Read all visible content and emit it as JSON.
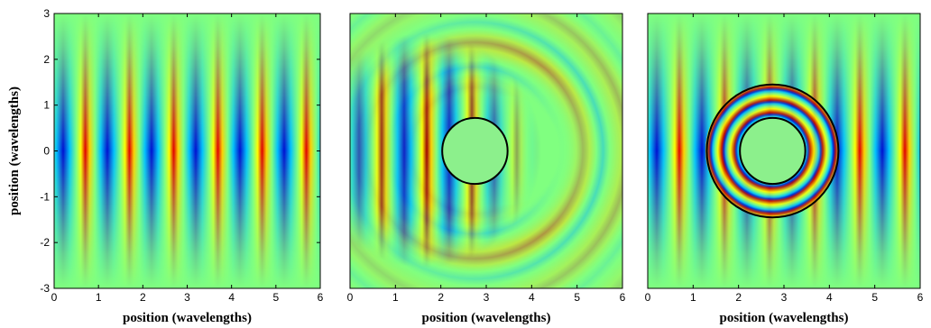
{
  "chart_data": [
    {
      "type": "field",
      "xlabel": "position (wavelengths)",
      "ylabel": "position (wavelengths)",
      "xlim": [
        0,
        6
      ],
      "xticks": [
        0,
        1,
        2,
        3,
        4,
        5,
        6
      ],
      "ylim": [
        -3,
        3
      ],
      "yticks": [
        -3,
        -2,
        -1,
        0,
        1,
        2,
        3
      ]
    },
    {
      "type": "field",
      "xlabel": "position (wavelengths)",
      "xlim": [
        0,
        6
      ],
      "xticks": [
        0,
        1,
        2,
        3,
        4,
        5,
        6
      ],
      "ylim": [
        -3,
        3
      ],
      "circles": [
        {
          "cx": 2.75,
          "cy": 0,
          "r": 0.72
        }
      ]
    },
    {
      "type": "field",
      "xlabel": "position (wavelengths)",
      "xlim": [
        0,
        6
      ],
      "xticks": [
        0,
        1,
        2,
        3,
        4,
        5,
        6
      ],
      "ylim": [
        -3,
        3
      ],
      "circles": [
        {
          "cx": 2.75,
          "cy": 0,
          "r": 0.72
        },
        {
          "cx": 2.75,
          "cy": 0,
          "r": 1.45
        }
      ]
    }
  ]
}
